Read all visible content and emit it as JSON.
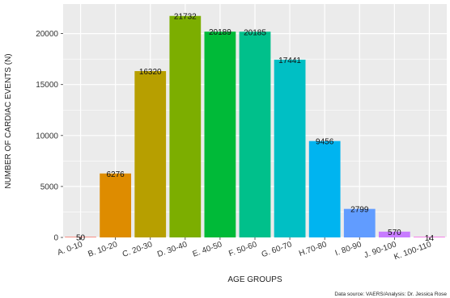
{
  "chart_data": {
    "type": "bar",
    "title": "",
    "xlabel": "AGE GROUPS",
    "ylabel": "NUMBER OF CARDIAC EVENTS (N)",
    "categories": [
      "A. 0-10",
      "B. 10-20",
      "C. 20-30",
      "D. 30-40",
      "E. 40-50",
      "F. 50-60",
      "G. 60-70",
      "H.70-80",
      "I. 80-90",
      "J. 90-100",
      "K. 100-110"
    ],
    "values": [
      50,
      6276,
      16320,
      21732,
      20189,
      20185,
      17441,
      9456,
      2799,
      570,
      14
    ],
    "data_labels": [
      "50",
      "6276",
      "16320",
      "21732",
      "20189",
      "20185",
      "17441",
      "9456",
      "2799",
      "570",
      "14"
    ],
    "colors": [
      "#f8766d",
      "#de8c00",
      "#b79f00",
      "#7cae00",
      "#00ba38",
      "#00c08b",
      "#00bfc4",
      "#00b4f0",
      "#619cff",
      "#c77cff",
      "#f564e3"
    ],
    "ylim": [
      0,
      22900
    ],
    "yticks": [
      0,
      5000,
      10000,
      15000,
      20000
    ],
    "ytick_labels": [
      "0",
      "5000",
      "10000",
      "15000",
      "20000"
    ],
    "grid": true,
    "legend": "none",
    "panel_background": "#ebebeb",
    "grid_color": "#ffffff",
    "source_note": "Data source: VAERS/Analysis: Dr. Jessica Rose"
  }
}
